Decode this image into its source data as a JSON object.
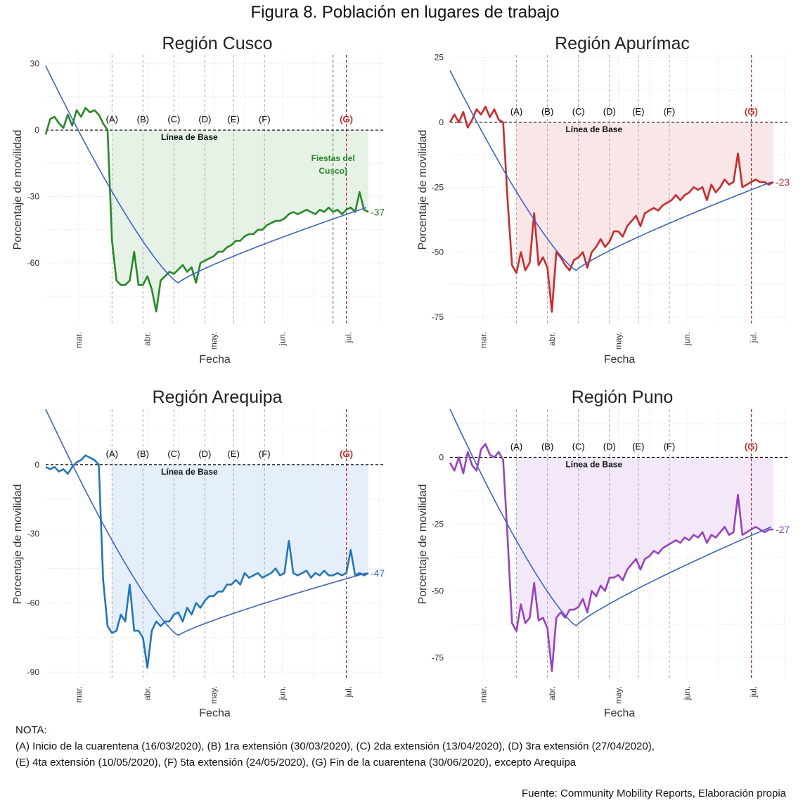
{
  "figure_title": "Figura 8. Población en lugares de trabajo",
  "note": {
    "heading": "NOTA:",
    "line1": "(A) Inicio de la cuarentena (16/03/2020), (B) 1ra extensión (30/03/2020), (C) 2da extensión (13/04/2020), (D) 3ra extensión (27/04/2020),",
    "line2": "(E) 4ta extensión (10/05/2020), (F) 5ta extensión (24/05/2020), (G) Fin de la cuarentena (30/06/2020), excepto Arequipa"
  },
  "source": "Fuente: Community Mobility Reports, Elaboración propia",
  "colors": {
    "cusco": "#228B22",
    "cusco_fill": "#e6f2e6",
    "apurimac": "#d62728",
    "apurimac_fill": "#f9e6e6",
    "arequipa": "#1f77c4",
    "arequipa_fill": "#e4eff9",
    "puno": "#9b3fc8",
    "puno_fill": "#f3e8f8",
    "trend": "#3a62d8",
    "event_line": "#aaaaaa",
    "end_line": "#dd0000"
  },
  "chart_data": [
    {
      "type": "line",
      "title": "Región Cusco",
      "xlabel": "Fecha",
      "ylabel": "Porcentaje de movilidad",
      "x_ticks": [
        "mar.",
        "abr.",
        "may.",
        "jun.",
        "jul."
      ],
      "x_tick_dates": [
        "2020-03-01",
        "2020-04-01",
        "2020-05-01",
        "2020-06-01",
        "2020-07-01"
      ],
      "xlim": [
        "2020-02-15",
        "2020-07-17"
      ],
      "y_ticks": [
        30,
        0,
        -30,
        -60
      ],
      "ylim": [
        -88,
        34
      ],
      "baseline_label": "Línea de Base",
      "events": [
        {
          "label": "(A)",
          "date": "2020-03-16"
        },
        {
          "label": "(B)",
          "date": "2020-03-30"
        },
        {
          "label": "(C)",
          "date": "2020-04-13"
        },
        {
          "label": "(D)",
          "date": "2020-04-27"
        },
        {
          "label": "(E)",
          "date": "2020-05-10"
        },
        {
          "label": "(F)",
          "date": "2020-05-24"
        },
        {
          "label": "(G)",
          "date": "2020-06-30"
        }
      ],
      "extra_event": {
        "label": "Fiestas del Cusco)",
        "date": "2020-06-24"
      },
      "end_value": -37,
      "end_label": "-37",
      "trend": {
        "start": 29,
        "min": -69,
        "min_date": "2020-04-15",
        "end": -35
      },
      "series": [
        {
          "start_date": "2020-02-15",
          "interval_days": 2,
          "values": [
            -2,
            5,
            6,
            3,
            1,
            7,
            2,
            9,
            6,
            10,
            8,
            9,
            7,
            3,
            0,
            -50,
            -68,
            -70,
            -70,
            -68,
            -55,
            -70,
            -70,
            -66,
            -72,
            -82,
            -68,
            -66,
            -64,
            -65,
            -63,
            -61,
            -64,
            -62,
            -69,
            -60,
            -59,
            -58,
            -57,
            -55,
            -55,
            -53,
            -52,
            -50,
            -50,
            -48,
            -47,
            -47,
            -45,
            -45,
            -43,
            -42,
            -41,
            -41,
            -40,
            -38,
            -37,
            -38,
            -37,
            -36,
            -37,
            -38,
            -36,
            -37,
            -35,
            -37,
            -36,
            -38,
            -36,
            -35,
            -37,
            -28,
            -36,
            -37
          ]
        }
      ]
    },
    {
      "type": "line",
      "title": "Región Apurímac",
      "xlabel": "Fecha",
      "ylabel": "Porcentaje de movilidad",
      "x_ticks": [
        "mar.",
        "abr.",
        "may.",
        "jun.",
        "jul."
      ],
      "x_tick_dates": [
        "2020-03-01",
        "2020-04-01",
        "2020-05-01",
        "2020-06-01",
        "2020-07-01"
      ],
      "xlim": [
        "2020-02-15",
        "2020-07-17"
      ],
      "y_ticks": [
        25,
        0,
        -25,
        -50,
        -75
      ],
      "ylim": [
        -78,
        26
      ],
      "baseline_label": "Línea de Base",
      "events": [
        {
          "label": "(A)",
          "date": "2020-03-16"
        },
        {
          "label": "(B)",
          "date": "2020-03-30"
        },
        {
          "label": "(C)",
          "date": "2020-04-13"
        },
        {
          "label": "(D)",
          "date": "2020-04-27"
        },
        {
          "label": "(E)",
          "date": "2020-05-10"
        },
        {
          "label": "(F)",
          "date": "2020-05-24"
        },
        {
          "label": "(G)",
          "date": "2020-06-30"
        }
      ],
      "end_value": -23,
      "end_label": "-23",
      "trend": {
        "start": 20,
        "min": -57,
        "min_date": "2020-04-12",
        "end": -23
      },
      "series": [
        {
          "start_date": "2020-02-15",
          "interval_days": 2,
          "values": [
            0,
            3,
            0,
            4,
            -2,
            1,
            5,
            3,
            6,
            2,
            5,
            1,
            0,
            -30,
            -55,
            -58,
            -50,
            -57,
            -54,
            -35,
            -55,
            -52,
            -56,
            -73,
            -50,
            -52,
            -55,
            -57,
            -53,
            -52,
            -50,
            -56,
            -50,
            -48,
            -45,
            -48,
            -46,
            -42,
            -42,
            -44,
            -40,
            -38,
            -36,
            -40,
            -35,
            -34,
            -33,
            -34,
            -32,
            -31,
            -30,
            -28,
            -30,
            -28,
            -27,
            -25,
            -26,
            -25,
            -30,
            -24,
            -27,
            -25,
            -22,
            -24,
            -23,
            -12,
            -25,
            -24,
            -23,
            -22,
            -23,
            -23,
            -24,
            -23
          ]
        }
      ]
    },
    {
      "type": "line",
      "title": "Región Arequipa",
      "xlabel": "Fecha",
      "ylabel": "Porcentaje de movilidad",
      "x_ticks": [
        "mar.",
        "abr.",
        "may.",
        "jun.",
        "jul."
      ],
      "x_tick_dates": [
        "2020-03-01",
        "2020-04-01",
        "2020-05-01",
        "2020-06-01",
        "2020-07-01"
      ],
      "xlim": [
        "2020-02-15",
        "2020-07-17"
      ],
      "y_ticks": [
        0,
        -30,
        -60,
        -90
      ],
      "ylim": [
        -93,
        24
      ],
      "baseline_label": "Línea de Base",
      "events": [
        {
          "label": "(A)",
          "date": "2020-03-16"
        },
        {
          "label": "(B)",
          "date": "2020-03-30"
        },
        {
          "label": "(C)",
          "date": "2020-04-13"
        },
        {
          "label": "(D)",
          "date": "2020-04-27"
        },
        {
          "label": "(E)",
          "date": "2020-05-10"
        },
        {
          "label": "(F)",
          "date": "2020-05-24"
        },
        {
          "label": "(G)",
          "date": "2020-06-30"
        }
      ],
      "end_value": -47,
      "end_label": "-47",
      "trend": {
        "start": 24,
        "min": -74,
        "min_date": "2020-04-15",
        "end": -47
      },
      "series": [
        {
          "start_date": "2020-02-15",
          "interval_days": 2,
          "values": [
            -1,
            -2,
            -1,
            -3,
            -2,
            -4,
            -1,
            1,
            2,
            4,
            3,
            2,
            0,
            -50,
            -70,
            -73,
            -72,
            -65,
            -68,
            -52,
            -72,
            -72,
            -75,
            -88,
            -72,
            -68,
            -70,
            -68,
            -68,
            -65,
            -64,
            -68,
            -62,
            -65,
            -60,
            -62,
            -59,
            -57,
            -57,
            -55,
            -55,
            -52,
            -52,
            -50,
            -52,
            -47,
            -49,
            -48,
            -47,
            -49,
            -48,
            -47,
            -45,
            -48,
            -47,
            -33,
            -47,
            -48,
            -47,
            -46,
            -49,
            -47,
            -48,
            -46,
            -48,
            -48,
            -47,
            -48,
            -47,
            -37,
            -48,
            -47,
            -48,
            -47
          ]
        }
      ]
    },
    {
      "type": "line",
      "title": "Región Puno",
      "xlabel": "Fecha",
      "ylabel": "Porcentaje de movilidad",
      "x_ticks": [
        "mar.",
        "abr.",
        "may.",
        "jun.",
        "jul."
      ],
      "x_tick_dates": [
        "2020-03-01",
        "2020-04-01",
        "2020-05-01",
        "2020-06-01",
        "2020-07-01"
      ],
      "xlim": [
        "2020-02-15",
        "2020-07-17"
      ],
      "y_ticks": [
        0,
        -25,
        -50,
        -75
      ],
      "ylim": [
        -83,
        18
      ],
      "baseline_label": "Línea de Base",
      "events": [
        {
          "label": "(A)",
          "date": "2020-03-16"
        },
        {
          "label": "(B)",
          "date": "2020-03-30"
        },
        {
          "label": "(C)",
          "date": "2020-04-13"
        },
        {
          "label": "(D)",
          "date": "2020-04-27"
        },
        {
          "label": "(E)",
          "date": "2020-05-10"
        },
        {
          "label": "(F)",
          "date": "2020-05-24"
        },
        {
          "label": "(G)",
          "date": "2020-06-30"
        }
      ],
      "end_value": -27,
      "end_label": "-27",
      "trend": {
        "start": 18,
        "min": -63,
        "min_date": "2020-04-12",
        "end": -26
      },
      "series": [
        {
          "start_date": "2020-02-15",
          "interval_days": 2,
          "values": [
            -2,
            -5,
            0,
            -6,
            2,
            -3,
            -5,
            3,
            5,
            1,
            0,
            2,
            -1,
            -30,
            -62,
            -65,
            -55,
            -62,
            -60,
            -47,
            -61,
            -60,
            -64,
            -80,
            -60,
            -58,
            -60,
            -57,
            -57,
            -56,
            -53,
            -58,
            -50,
            -52,
            -48,
            -50,
            -45,
            -45,
            -44,
            -46,
            -42,
            -40,
            -38,
            -42,
            -38,
            -37,
            -35,
            -36,
            -34,
            -33,
            -32,
            -31,
            -32,
            -30,
            -31,
            -29,
            -30,
            -28,
            -32,
            -29,
            -30,
            -28,
            -26,
            -29,
            -28,
            -14,
            -29,
            -28,
            -27,
            -26,
            -27,
            -28,
            -27,
            -27
          ]
        }
      ]
    }
  ]
}
